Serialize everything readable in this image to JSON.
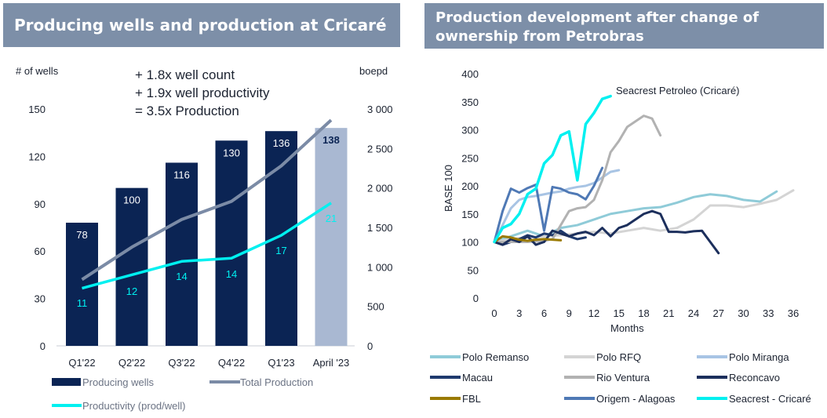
{
  "left_panel": {
    "title": "Producing wells and production at Cricaré",
    "annotations": [
      "+  1.8x well count",
      "+  1.9x well productivity",
      "= 3.5x Production"
    ]
  },
  "right_panel": {
    "title_line1": "Production development after change of",
    "title_line2": "ownership from Petrobras",
    "series_label": "Seacrest Petroleo (Cricaré)"
  },
  "colors": {
    "header": "#7d8fa8",
    "navy": "#0b2454",
    "bar_highlight": "#a9b8d2",
    "total_production": "#7b8ba6",
    "productivity": "#00f0f0"
  },
  "chart_data": [
    {
      "type": "bar",
      "title": "Producing wells and production at Cricaré",
      "categories": [
        "Q1'22",
        "Q2'22",
        "Q3'22",
        "Q4'22",
        "Q1'23",
        "April '23"
      ],
      "ylabel_left": "# of wells",
      "ylabel_right": "boepd",
      "ylim_left": [
        0,
        150
      ],
      "yticks_left": [
        "0",
        "30",
        "60",
        "90",
        "120",
        "150"
      ],
      "ylim_right": [
        0,
        3000
      ],
      "yticks_right": [
        "0",
        "500",
        "1 000",
        "1 500",
        "2 000",
        "2 500",
        "3 000"
      ],
      "series": [
        {
          "name": "Producing wells",
          "kind": "bar",
          "axis": "left",
          "values": [
            78,
            100,
            116,
            130,
            136,
            138
          ],
          "labels": [
            "78",
            "100",
            "116",
            "130",
            "136",
            "138"
          ]
        },
        {
          "name": "Total Production",
          "kind": "line",
          "axis": "right",
          "values": [
            840,
            1250,
            1600,
            1830,
            2280,
            2860
          ]
        },
        {
          "name": "Productivity (prod/well)",
          "kind": "line",
          "axis": "right",
          "values": [
            730,
            900,
            1070,
            1110,
            1400,
            1810
          ],
          "labels": [
            "11",
            "12",
            "14",
            "14",
            "17",
            "21"
          ]
        }
      ],
      "legend": [
        "Producing wells",
        "Total Production",
        "Productivity (prod/well)"
      ],
      "legend_position": "bottom",
      "grid": false
    },
    {
      "type": "line",
      "title": "Production development after change of ownership from Petrobras",
      "xlabel": "Months",
      "ylabel": "BASE 100",
      "xlim": [
        0,
        36
      ],
      "xticks": [
        "0",
        "3",
        "6",
        "9",
        "12",
        "15",
        "18",
        "21",
        "24",
        "27",
        "30",
        "33",
        "36"
      ],
      "ylim": [
        0,
        400
      ],
      "yticks": [
        "0",
        "50",
        "100",
        "150",
        "200",
        "250",
        "300",
        "350",
        "400"
      ],
      "grid": false,
      "legend_position": "bottom",
      "series": [
        {
          "name": "Polo Remanso",
          "color": "#8fcbd8",
          "x": [
            0,
            2,
            4,
            6,
            8,
            10,
            12,
            14,
            16,
            18,
            20,
            22,
            24,
            26,
            28,
            30,
            32,
            34
          ],
          "y": [
            100,
            110,
            120,
            110,
            125,
            130,
            140,
            150,
            155,
            160,
            162,
            170,
            180,
            185,
            182,
            175,
            172,
            190
          ]
        },
        {
          "name": "Polo RFQ",
          "color": "#d4d4d4",
          "x": [
            0,
            2,
            4,
            6,
            8,
            10,
            12,
            14,
            16,
            18,
            20,
            22,
            24,
            26,
            28,
            30,
            32,
            34,
            36
          ],
          "y": [
            100,
            105,
            108,
            110,
            112,
            115,
            118,
            115,
            120,
            125,
            120,
            125,
            140,
            165,
            165,
            162,
            168,
            175,
            192
          ]
        },
        {
          "name": "Polo Miranga",
          "color": "#a8c4e4",
          "x": [
            0,
            1,
            2,
            3,
            4,
            5,
            6,
            7,
            8,
            9,
            10,
            11,
            12,
            13,
            14,
            15
          ],
          "y": [
            100,
            130,
            160,
            175,
            180,
            182,
            185,
            188,
            190,
            195,
            198,
            200,
            205,
            215,
            225,
            228
          ]
        },
        {
          "name": "Macau",
          "color": "#1f3a6e",
          "x": [
            0,
            1,
            2,
            3,
            4,
            5,
            6,
            7,
            8,
            9,
            10,
            11
          ],
          "y": [
            100,
            95,
            100,
            105,
            112,
            108,
            115,
            112,
            120,
            110,
            105,
            108
          ]
        },
        {
          "name": "Rio Ventura",
          "color": "#b2b2b2",
          "x": [
            0,
            2,
            4,
            6,
            7,
            8,
            9,
            10,
            11,
            12,
            13,
            14,
            15,
            16,
            17,
            18,
            19,
            20
          ],
          "y": [
            100,
            100,
            100,
            102,
            105,
            130,
            155,
            160,
            162,
            175,
            210,
            260,
            280,
            305,
            315,
            325,
            320,
            290
          ]
        },
        {
          "name": "Reconcavo",
          "color": "#1c2f5c",
          "x": [
            0,
            1,
            2,
            3,
            4,
            5,
            6,
            7,
            8,
            9,
            10,
            11,
            12,
            13,
            14,
            15,
            16,
            17,
            18,
            19,
            20,
            21,
            22,
            23,
            24,
            25,
            26,
            27
          ],
          "y": [
            100,
            95,
            105,
            100,
            110,
            95,
            100,
            120,
            115,
            110,
            115,
            118,
            112,
            125,
            110,
            125,
            130,
            140,
            150,
            155,
            150,
            118,
            118,
            117,
            119,
            120,
            100,
            80
          ]
        },
        {
          "name": "FBL",
          "color": "#9a7a00",
          "x": [
            0,
            1,
            2,
            3,
            4,
            5,
            6,
            7,
            8
          ],
          "y": [
            100,
            110,
            108,
            104,
            102,
            104,
            105,
            104,
            103
          ]
        },
        {
          "name": "Origem - Alagoas",
          "color": "#4f79b5",
          "x": [
            0,
            1,
            2,
            3,
            4,
            5,
            6,
            7,
            8,
            9,
            10,
            11,
            12,
            13
          ],
          "y": [
            100,
            155,
            195,
            188,
            196,
            202,
            120,
            198,
            195,
            188,
            185,
            176,
            200,
            232
          ]
        },
        {
          "name": "Seacrest - Cricaré",
          "color": "#00f0f0",
          "x": [
            0,
            1,
            2,
            3,
            4,
            5,
            6,
            7,
            8,
            9,
            10,
            11,
            12,
            13,
            14
          ],
          "y": [
            100,
            125,
            132,
            150,
            185,
            195,
            240,
            255,
            290,
            297,
            210,
            310,
            330,
            355,
            360
          ]
        }
      ]
    }
  ]
}
